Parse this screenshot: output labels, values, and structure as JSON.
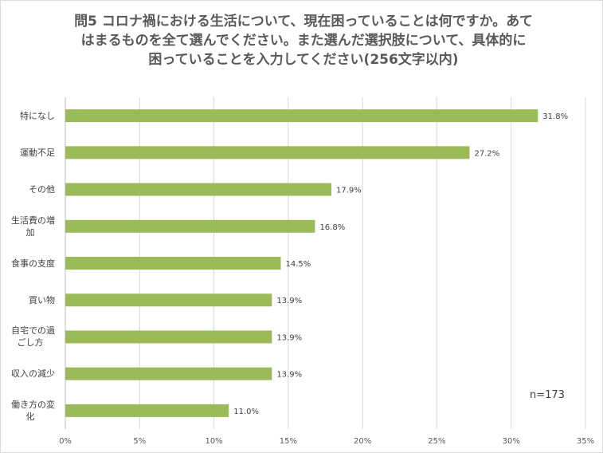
{
  "chart_data": {
    "type": "bar",
    "orientation": "horizontal",
    "title": "問5 コロナ禍における生活について、現在困っていることは何ですか。あて\nはまるものを全て選んでください。また選んだ選択肢について、具体的に\n困っていることを入力してください(256文字以内)",
    "categories": [
      "特になし",
      "運動不足",
      "その他",
      "生活費の増加",
      "食事の支度",
      "買い物",
      "自宅での過ごし方",
      "収入の減少",
      "働き方の変化"
    ],
    "category_labels": [
      [
        "特になし"
      ],
      [
        "運動不足"
      ],
      [
        "その他"
      ],
      [
        "生活費の増",
        "加"
      ],
      [
        "食事の支度"
      ],
      [
        "買い物"
      ],
      [
        "自宅での過",
        "ごし方"
      ],
      [
        "収入の減少"
      ],
      [
        "働き方の変",
        "化"
      ]
    ],
    "values": [
      31.8,
      27.2,
      17.9,
      16.8,
      14.5,
      13.9,
      13.9,
      13.9,
      11.0
    ],
    "value_labels": [
      "31.8%",
      "27.2%",
      "17.9%",
      "16.8%",
      "14.5%",
      "13.9%",
      "13.9%",
      "13.9%",
      "11.0%"
    ],
    "xlim": [
      0,
      35
    ],
    "x_ticks": [
      0,
      5,
      10,
      15,
      20,
      25,
      30,
      35
    ],
    "x_tick_labels": [
      "0%",
      "5%",
      "10%",
      "15%",
      "20%",
      "25%",
      "30%",
      "35%"
    ],
    "grid": true,
    "bar_color": "#9bbb59",
    "annotation": "n=173"
  }
}
